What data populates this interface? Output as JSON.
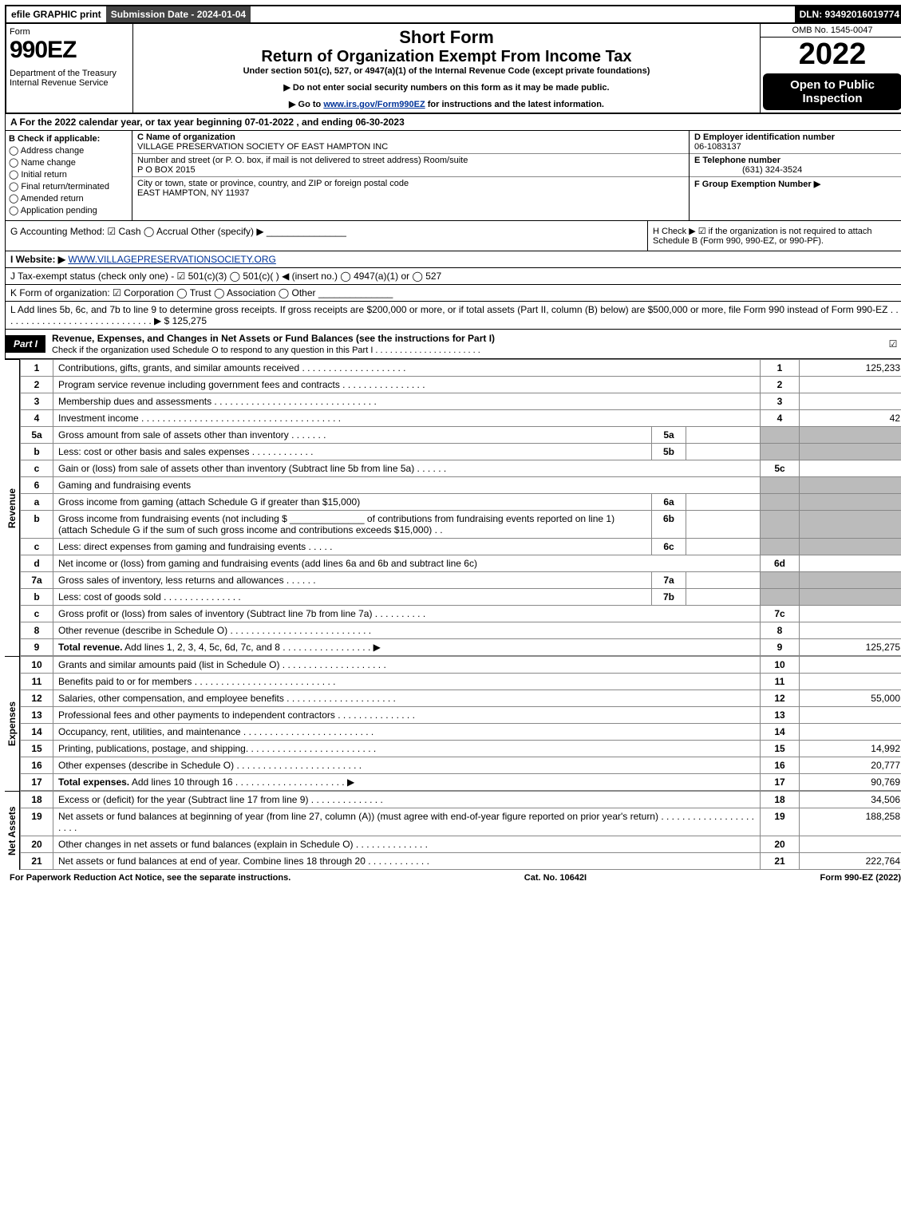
{
  "topbar": {
    "efile": "efile GRAPHIC print",
    "submission": "Submission Date - 2024-01-04",
    "dln": "DLN: 93492016019774"
  },
  "header": {
    "form": "Form",
    "form_no": "990EZ",
    "dept": "Department of the Treasury\nInternal Revenue Service",
    "short_form": "Short Form",
    "title": "Return of Organization Exempt From Income Tax",
    "under": "Under section 501(c), 527, or 4947(a)(1) of the Internal Revenue Code (except private foundations)",
    "note1": "▶ Do not enter social security numbers on this form as it may be made public.",
    "note2_pre": "▶ Go to ",
    "note2_link": "www.irs.gov/Form990EZ",
    "note2_post": " for instructions and the latest information.",
    "omb": "OMB No. 1545-0047",
    "year": "2022",
    "open": "Open to Public Inspection"
  },
  "A": "A  For the 2022 calendar year, or tax year beginning 07-01-2022 , and ending 06-30-2023",
  "B": {
    "label": "B  Check if applicable:",
    "opts": [
      "Address change",
      "Name change",
      "Initial return",
      "Final return/terminated",
      "Amended return",
      "Application pending"
    ]
  },
  "C": {
    "name_lbl": "C Name of organization",
    "name": "VILLAGE PRESERVATION SOCIETY OF EAST HAMPTON INC",
    "street_lbl": "Number and street (or P. O. box, if mail is not delivered to street address)       Room/suite",
    "street": "P O BOX 2015",
    "city_lbl": "City or town, state or province, country, and ZIP or foreign postal code",
    "city": "EAST HAMPTON, NY  11937"
  },
  "D": {
    "lbl": "D Employer identification number",
    "val": "06-1083137"
  },
  "E": {
    "lbl": "E Telephone number",
    "val": "(631) 324-3524"
  },
  "F": {
    "lbl": "F Group Exemption Number   ▶",
    "val": ""
  },
  "G": "G Accounting Method:   ☑ Cash   ◯ Accrual   Other (specify) ▶ _______________",
  "H": "H   Check ▶  ☑  if the organization is not required to attach Schedule B (Form 990, 990-EZ, or 990-PF).",
  "I": {
    "pre": "I Website: ▶",
    "link": "WWW.VILLAGEPRESERVATIONSOCIETY.ORG"
  },
  "J": "J Tax-exempt status (check only one) -  ☑ 501(c)(3)  ◯ 501(c)(  ) ◀ (insert no.)  ◯ 4947(a)(1) or  ◯ 527",
  "K": "K Form of organization:   ☑ Corporation   ◯ Trust   ◯ Association   ◯ Other  ______________",
  "L": {
    "text": "L Add lines 5b, 6c, and 7b to line 9 to determine gross receipts. If gross receipts are $200,000 or more, or if total assets (Part II, column (B) below) are $500,000 or more, file Form 990 instead of Form 990-EZ  .  .  .  .  .  .  .  .  .  .  .  .  .  .  .  .  .  .  .  .  .  .  .  .  .  .  .  .  .  ▶ $",
    "amt": "125,275"
  },
  "partI": {
    "label": "Part I",
    "title": "Revenue, Expenses, and Changes in Net Assets or Fund Balances (see the instructions for Part I)",
    "sub": "Check if the organization used Schedule O to respond to any question in this Part I .  .  .  .  .  .  .  .  .  .  .  .  .  .  .  .  .  .  .  .  .  ."
  },
  "sections": {
    "rev": "Revenue",
    "exp": "Expenses",
    "na": "Net Assets"
  },
  "rows": [
    {
      "n": "1",
      "d": "Contributions, gifts, grants, and similar amounts received  .  .  .  .  .  .  .  .  .  .  .  .  .  .  .  .  .  .  .  .",
      "box": "1",
      "amt": "125,233"
    },
    {
      "n": "2",
      "d": "Program service revenue including government fees and contracts  .  .  .  .  .  .  .  .  .  .  .  .  .  .  .  .",
      "box": "2",
      "amt": ""
    },
    {
      "n": "3",
      "d": "Membership dues and assessments  .  .  .  .  .  .  .  .  .  .  .  .  .  .  .  .  .  .  .  .  .  .  .  .  .  .  .  .  .  .  .",
      "box": "3",
      "amt": ""
    },
    {
      "n": "4",
      "d": "Investment income  .  .  .  .  .  .  .  .  .  .  .  .  .  .  .  .  .  .  .  .  .  .  .  .  .  .  .  .  .  .  .  .  .  .  .  .  .  .",
      "box": "4",
      "amt": "42"
    },
    {
      "n": "5a",
      "d": "Gross amount from sale of assets other than inventory  .  .  .  .  .  .  .",
      "sb": "5a",
      "sba": "",
      "shade": true
    },
    {
      "n": "b",
      "d": "Less: cost or other basis and sales expenses  .  .  .  .  .  .  .  .  .  .  .  .",
      "sb": "5b",
      "sba": "",
      "shade": true
    },
    {
      "n": "c",
      "d": "Gain or (loss) from sale of assets other than inventory (Subtract line 5b from line 5a)  .  .  .  .  .  .",
      "box": "5c",
      "amt": ""
    },
    {
      "n": "6",
      "d": "Gaming and fundraising events",
      "shade": true,
      "noamt": true
    },
    {
      "n": "a",
      "d": "Gross income from gaming (attach Schedule G if greater than $15,000)",
      "sb": "6a",
      "sba": "",
      "shade": true
    },
    {
      "n": "b",
      "d": "Gross income from fundraising events (not including $ ______________ of contributions from fundraising events reported on line 1) (attach Schedule G if the sum of such gross income and contributions exceeds $15,000)    .   .",
      "sb": "6b",
      "sba": "",
      "shade": true
    },
    {
      "n": "c",
      "d": "Less: direct expenses from gaming and fundraising events   .  .  .  .  .",
      "sb": "6c",
      "sba": "",
      "shade": true
    },
    {
      "n": "d",
      "d": "Net income or (loss) from gaming and fundraising events (add lines 6a and 6b and subtract line 6c)",
      "box": "6d",
      "amt": ""
    },
    {
      "n": "7a",
      "d": "Gross sales of inventory, less returns and allowances  .  .  .  .  .  .",
      "sb": "7a",
      "sba": "",
      "shade": true
    },
    {
      "n": "b",
      "d": "Less: cost of goods sold         .  .  .  .  .  .  .  .  .  .  .  .  .  .  .",
      "sb": "7b",
      "sba": "",
      "shade": true
    },
    {
      "n": "c",
      "d": "Gross profit or (loss) from sales of inventory (Subtract line 7b from line 7a)  .  .  .  .  .  .  .  .  .  .",
      "box": "7c",
      "amt": ""
    },
    {
      "n": "8",
      "d": "Other revenue (describe in Schedule O)  .  .  .  .  .  .  .  .  .  .  .  .  .  .  .  .  .  .  .  .  .  .  .  .  .  .  .",
      "box": "8",
      "amt": ""
    },
    {
      "n": "9",
      "d": "Total revenue. Add lines 1, 2, 3, 4, 5c, 6d, 7c, and 8   .  .  .  .  .  .  .  .  .  .  .  .  .  .  .  .  .       ▶",
      "box": "9",
      "amt": "125,275",
      "bold": true
    }
  ],
  "exp_rows": [
    {
      "n": "10",
      "d": "Grants and similar amounts paid (list in Schedule O)  .  .  .  .  .  .  .  .  .  .  .  .  .  .  .  .  .  .  .  .",
      "box": "10",
      "amt": ""
    },
    {
      "n": "11",
      "d": "Benefits paid to or for members      .  .  .  .  .  .  .  .  .  .  .  .  .  .  .  .  .  .  .  .  .  .  .  .  .  .  .",
      "box": "11",
      "amt": ""
    },
    {
      "n": "12",
      "d": "Salaries, other compensation, and employee benefits .  .  .  .  .  .  .  .  .  .  .  .  .  .  .  .  .  .  .  .  .",
      "box": "12",
      "amt": "55,000"
    },
    {
      "n": "13",
      "d": "Professional fees and other payments to independent contractors  .  .  .  .  .  .  .  .  .  .  .  .  .  .  .",
      "box": "13",
      "amt": ""
    },
    {
      "n": "14",
      "d": "Occupancy, rent, utilities, and maintenance .  .  .  .  .  .  .  .  .  .  .  .  .  .  .  .  .  .  .  .  .  .  .  .  .",
      "box": "14",
      "amt": ""
    },
    {
      "n": "15",
      "d": "Printing, publications, postage, and shipping.  .  .  .  .  .  .  .  .  .  .  .  .  .  .  .  .  .  .  .  .  .  .  .  .",
      "box": "15",
      "amt": "14,992"
    },
    {
      "n": "16",
      "d": "Other expenses (describe in Schedule O)      .  .  .  .  .  .  .  .  .  .  .  .  .  .  .  .  .  .  .  .  .  .  .  .",
      "box": "16",
      "amt": "20,777"
    },
    {
      "n": "17",
      "d": "Total expenses. Add lines 10 through 16     .  .  .  .  .  .  .  .  .  .  .  .  .  .  .  .  .  .  .  .  .       ▶",
      "box": "17",
      "amt": "90,769",
      "bold": true
    }
  ],
  "na_rows": [
    {
      "n": "18",
      "d": "Excess or (deficit) for the year (Subtract line 17 from line 9)        .  .  .  .  .  .  .  .  .  .  .  .  .  .",
      "box": "18",
      "amt": "34,506"
    },
    {
      "n": "19",
      "d": "Net assets or fund balances at beginning of year (from line 27, column (A)) (must agree with end-of-year figure reported on prior year's return) .  .  .  .  .  .  .  .  .  .  .  .  .  .  .  .  .  .  .  .  .  .",
      "box": "19",
      "amt": "188,258"
    },
    {
      "n": "20",
      "d": "Other changes in net assets or fund balances (explain in Schedule O) .  .  .  .  .  .  .  .  .  .  .  .  .  .",
      "box": "20",
      "amt": ""
    },
    {
      "n": "21",
      "d": "Net assets or fund balances at end of year. Combine lines 18 through 20 .  .  .  .  .  .  .  .  .  .  .  .",
      "box": "21",
      "amt": "222,764"
    }
  ],
  "footer": {
    "left": "For Paperwork Reduction Act Notice, see the separate instructions.",
    "mid": "Cat. No. 10642I",
    "right": "Form 990-EZ (2022)"
  }
}
